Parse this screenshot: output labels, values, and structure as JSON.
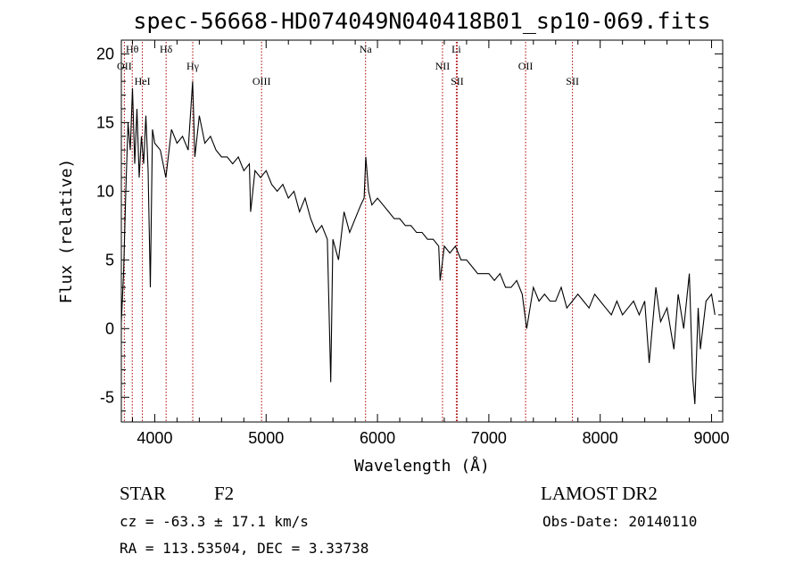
{
  "chart_data": {
    "type": "line",
    "title": "spec-56668-HD074049N040418B01_sp10-069.fits",
    "xlabel": "Wavelength (Å)",
    "ylabel": "Flux (relative)",
    "xlim": [
      3700,
      9100
    ],
    "ylim": [
      -6.8,
      21.0
    ],
    "x_ticks": [
      4000,
      5000,
      6000,
      7000,
      8000,
      9000
    ],
    "x_tick_labels": [
      "4000",
      "5000",
      "6000",
      "7000",
      "8000",
      "9000"
    ],
    "y_ticks": [
      -5,
      0,
      5,
      10,
      15,
      20
    ],
    "y_tick_labels": [
      "-5",
      "0",
      "5",
      "10",
      "15",
      "20"
    ],
    "grid": false,
    "legend": "none",
    "line_color": "#000000",
    "marker_color": "#aa0000",
    "spectral_lines": [
      {
        "label": "Hθ",
        "wavelength": 3798
      },
      {
        "label": "OII",
        "wavelength": 3727
      },
      {
        "label": "HeI",
        "wavelength": 3889
      },
      {
        "label": "Hδ",
        "wavelength": 4102
      },
      {
        "label": "Hγ",
        "wavelength": 4341
      },
      {
        "label": "OIII",
        "wavelength": 4959
      },
      {
        "label": "Na",
        "wavelength": 5893
      },
      {
        "label": "NII",
        "wavelength": 6584
      },
      {
        "label": "SII",
        "wavelength": 6716
      },
      {
        "label": "Li",
        "wavelength": 6708
      },
      {
        "label": "OII",
        "wavelength": 7330
      },
      {
        "label": "SII",
        "wavelength": 7751
      }
    ],
    "series": [
      {
        "x": [
          3700,
          3720,
          3740,
          3760,
          3780,
          3800,
          3820,
          3840,
          3860,
          3880,
          3900,
          3920,
          3940,
          3960,
          3980,
          4000,
          4050,
          4100,
          4150,
          4200,
          4250,
          4300,
          4340,
          4360,
          4400,
          4450,
          4500,
          4550,
          4600,
          4650,
          4700,
          4750,
          4800,
          4850,
          4861,
          4900,
          4950,
          5000,
          5050,
          5100,
          5150,
          5200,
          5250,
          5300,
          5350,
          5400,
          5450,
          5500,
          5550,
          5580,
          5600,
          5650,
          5700,
          5750,
          5800,
          5850,
          5880,
          5895,
          5920,
          5950,
          6000,
          6050,
          6100,
          6150,
          6200,
          6250,
          6300,
          6350,
          6400,
          6450,
          6500,
          6550,
          6563,
          6600,
          6650,
          6700,
          6750,
          6800,
          6850,
          6900,
          6950,
          7000,
          7050,
          7100,
          7150,
          7200,
          7250,
          7300,
          7340,
          7400,
          7450,
          7500,
          7550,
          7600,
          7650,
          7700,
          7750,
          7800,
          7850,
          7900,
          7950,
          8000,
          8050,
          8100,
          8150,
          8200,
          8250,
          8300,
          8350,
          8400,
          8440,
          8500,
          8542,
          8600,
          8662,
          8700,
          8750,
          8800,
          8830,
          8850,
          8880,
          8900,
          8950,
          9000,
          9030
        ],
        "y": [
          0.5,
          4.0,
          10.0,
          15.0,
          13.0,
          17.5,
          12.0,
          16.0,
          11.0,
          14.0,
          12.0,
          15.5,
          11.5,
          3.0,
          14.5,
          13.5,
          13.0,
          11.0,
          14.5,
          13.5,
          14.0,
          13.0,
          18.0,
          12.5,
          15.5,
          13.5,
          14.0,
          13.0,
          12.5,
          12.5,
          12.0,
          12.5,
          11.5,
          12.0,
          8.5,
          11.5,
          11.0,
          11.5,
          10.5,
          10.0,
          10.5,
          9.5,
          10.0,
          8.5,
          9.5,
          8.0,
          7.0,
          7.5,
          6.5,
          -3.9,
          6.5,
          5.0,
          8.5,
          7.0,
          8.0,
          9.0,
          9.5,
          12.5,
          10.0,
          9.0,
          9.5,
          9.0,
          8.5,
          8.0,
          8.0,
          7.5,
          7.5,
          7.0,
          7.0,
          6.5,
          6.5,
          6.0,
          3.5,
          6.0,
          5.5,
          6.0,
          5.0,
          5.0,
          4.5,
          4.0,
          4.0,
          4.0,
          3.5,
          4.0,
          3.0,
          3.0,
          3.5,
          2.5,
          0.0,
          3.0,
          2.0,
          2.5,
          2.0,
          2.0,
          3.0,
          1.5,
          2.0,
          2.5,
          2.0,
          1.5,
          2.5,
          2.0,
          1.5,
          1.0,
          2.0,
          1.0,
          1.5,
          2.0,
          1.0,
          2.0,
          -2.5,
          3.0,
          0.5,
          1.5,
          -1.5,
          2.5,
          0.0,
          4.0,
          -3.5,
          -5.5,
          1.5,
          -1.5,
          2.0,
          2.5,
          1.0
        ]
      }
    ]
  },
  "footer": {
    "object_type": "STAR",
    "subclass": "F2",
    "survey": "LAMOST DR2",
    "cz_line": "cz = -63.3 ± 17.1 km/s",
    "obs_date": "Obs-Date: 20140110",
    "coords_line": "RA = 113.53504, DEC =    3.33738"
  }
}
